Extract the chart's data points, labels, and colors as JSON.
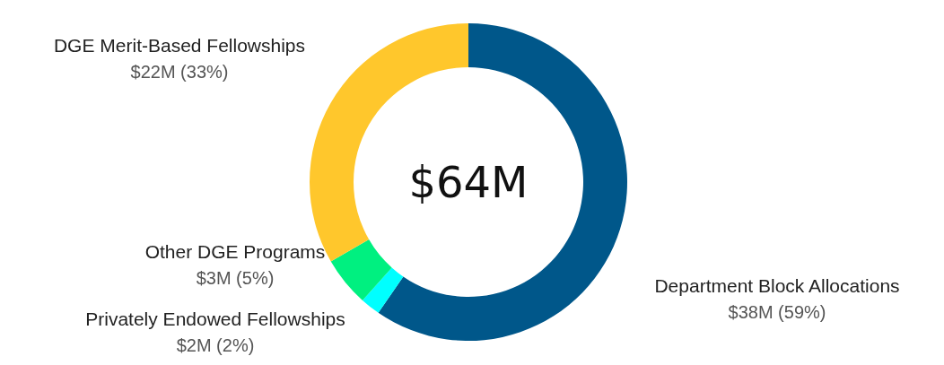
{
  "chart_data": {
    "type": "donut",
    "categories": [
      "Department Block Allocations",
      "Privately Endowed Fellowships",
      "Other DGE Programs",
      "DGE Merit-Based Fellowships"
    ],
    "values": [
      59,
      2,
      5,
      33
    ],
    "colors": [
      "#00578a",
      "#00ffff",
      "#00f080",
      "#ffc72c"
    ],
    "value_labels": [
      "$38M (59%)",
      "$2M (2%)",
      "$3M (5%)",
      "$22M (33%)"
    ],
    "annotations": [
      "$64M"
    ],
    "legend": false
  }
}
